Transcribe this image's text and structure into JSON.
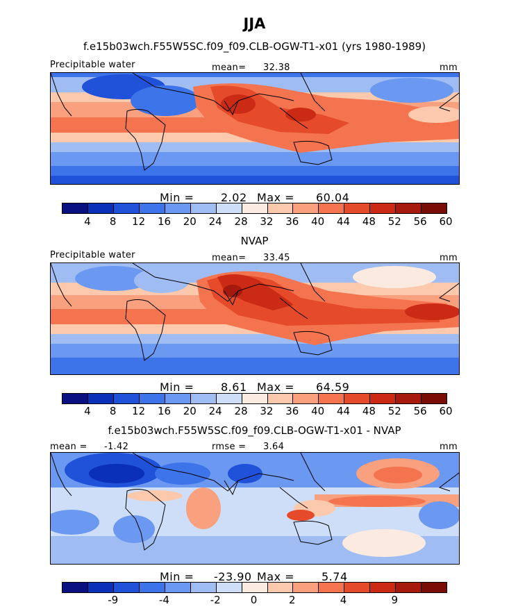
{
  "title": "JJA",
  "units": "mm",
  "colors": {
    "levels": [
      "#08117f",
      "#0a2fb8",
      "#1f52d8",
      "#3e74ea",
      "#6b98f0",
      "#9fbdf3",
      "#cfdef8",
      "#fbeae0",
      "#fcc9ad",
      "#f9a07e",
      "#f3744f",
      "#e54a2a",
      "#cb2a14",
      "#a51a0c",
      "#7a0c05"
    ]
  },
  "panels": [
    {
      "subtitle": "f.e15b03wch.F55W5SC.f09_f09.CLB-OGW-T1-x01 (yrs 1980-1989)",
      "left_label": "Precipitable water",
      "stat_label": "mean=",
      "stat_value": "32.38",
      "units": "mm",
      "min_label": "Min =",
      "min_value": "2.02",
      "max_label": "Max =",
      "max_value": "60.04",
      "ticks": [
        "4",
        "8",
        "12",
        "16",
        "20",
        "24",
        "28",
        "32",
        "36",
        "40",
        "44",
        "48",
        "52",
        "56",
        "60"
      ]
    },
    {
      "subtitle": "NVAP",
      "left_label": "Precipitable water",
      "stat_label": "mean=",
      "stat_value": "33.45",
      "units": "mm",
      "min_label": "Min =",
      "min_value": "8.61",
      "max_label": "Max =",
      "max_value": "64.59",
      "ticks": [
        "4",
        "8",
        "12",
        "16",
        "20",
        "24",
        "28",
        "32",
        "36",
        "40",
        "44",
        "48",
        "52",
        "56",
        "60"
      ]
    },
    {
      "subtitle": "f.e15b03wch.F55W5SC.f09_f09.CLB-OGW-T1-x01 - NVAP",
      "left_label": "mean =",
      "left_value": "-1.42",
      "stat_label": "rmse =",
      "stat_value": "3.64",
      "units": "mm",
      "min_label": "Min =",
      "min_value": "-23.90",
      "max_label": "Max =",
      "max_value": "5.74",
      "ticks": [
        "-9",
        "-4",
        "-2",
        "0",
        "2",
        "4",
        "9"
      ]
    }
  ]
}
